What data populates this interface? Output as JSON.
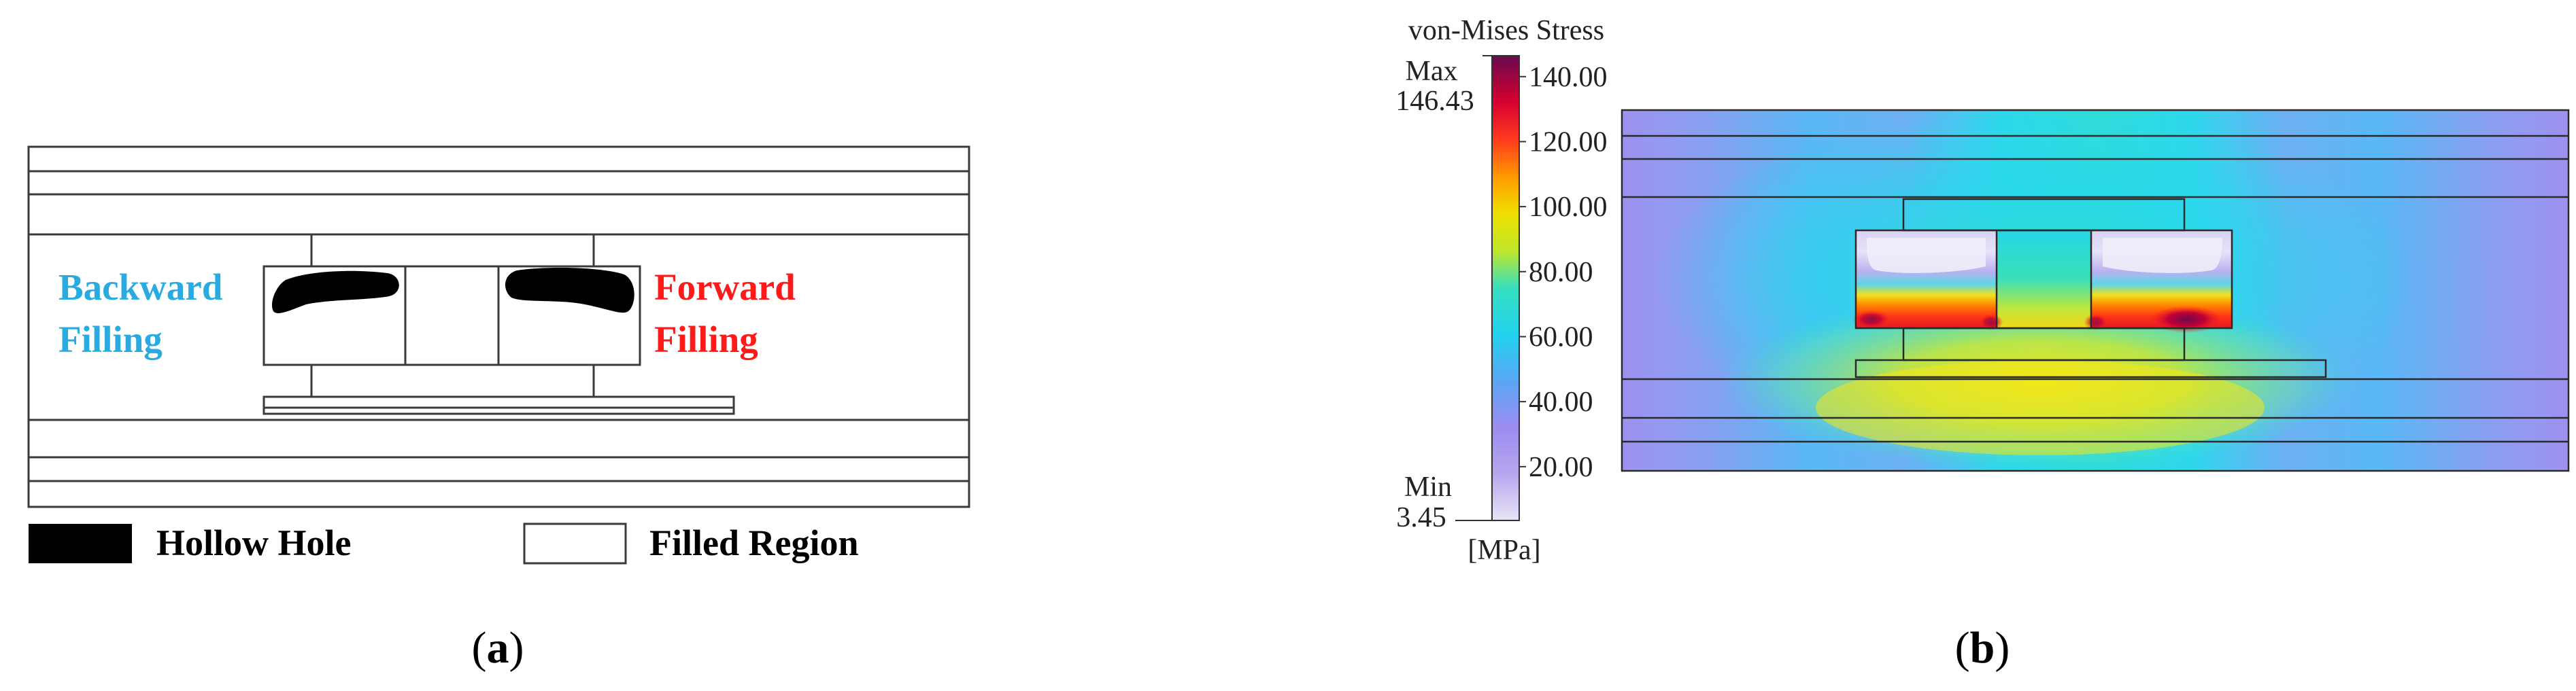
{
  "panel_a": {
    "label_backward": [
      "Backward",
      "Filling"
    ],
    "label_forward": [
      "Forward",
      "Filling"
    ],
    "legend": {
      "hollow": "Hollow Hole",
      "filled": "Filled Region"
    },
    "caption_prefix": "(",
    "caption_letter": "a",
    "caption_suffix": ")"
  },
  "panel_b": {
    "colorbar_title": "von-Mises Stress",
    "max_label": "Max",
    "max_value": "146.43",
    "min_label": "Min",
    "min_value": "3.45",
    "unit": "[MPa]",
    "ticks": [
      "140.00",
      "120.00",
      "100.00",
      "80.00",
      "60.00",
      "40.00",
      "20.00"
    ],
    "tick_values": [
      140,
      120,
      100,
      80,
      60,
      40,
      20
    ],
    "range": [
      3.45,
      146.43
    ],
    "caption_prefix": "(",
    "caption_letter": "b",
    "caption_suffix": ")"
  },
  "colors": {
    "backward": "#29abe2",
    "forward": "#ff1a1a",
    "hole": "#000000",
    "outline": "#3a3a3a"
  }
}
